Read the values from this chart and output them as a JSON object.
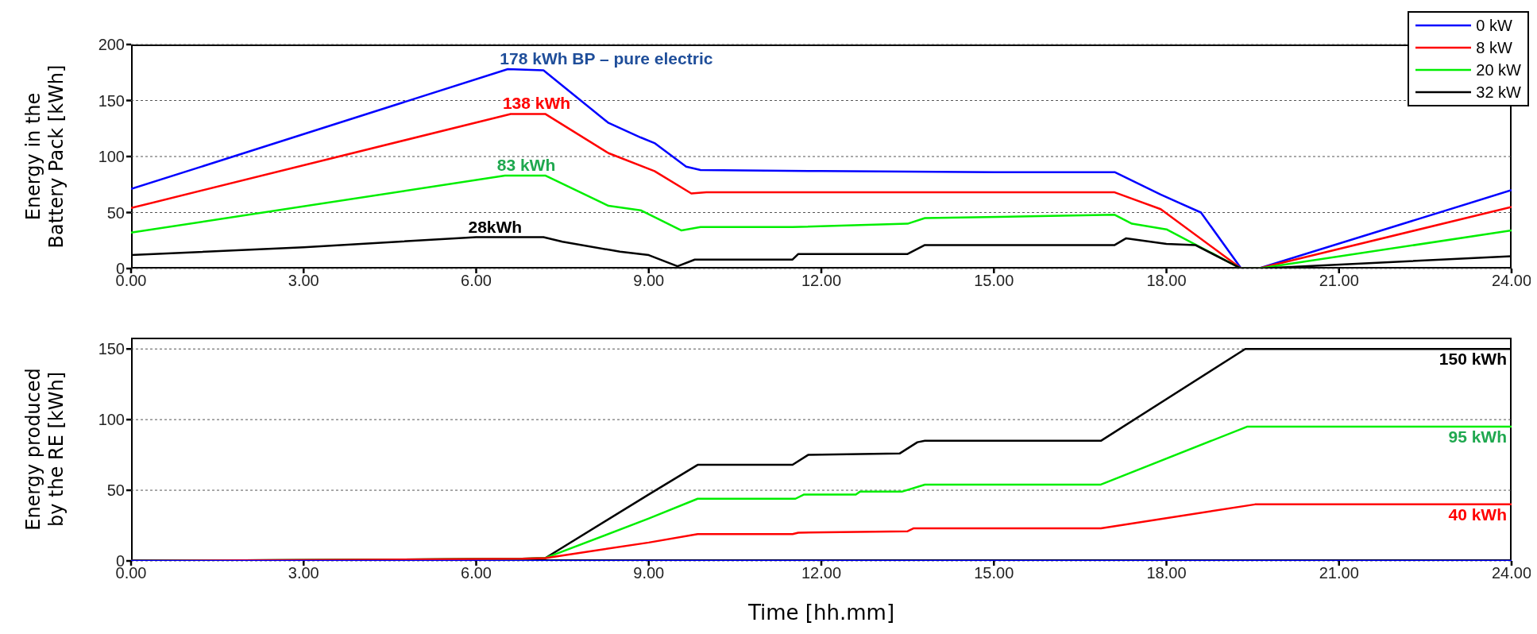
{
  "chart_data": [
    {
      "type": "line",
      "ylabel": "Energy in the Battery Pack [kWh]",
      "xlim": [
        0,
        24
      ],
      "xticks": [
        {
          "value": 0,
          "label": "0.00"
        },
        {
          "value": 3,
          "label": "3.00"
        },
        {
          "value": 6,
          "label": "6.00"
        },
        {
          "value": 9,
          "label": "9.00"
        },
        {
          "value": 12,
          "label": "12.00"
        },
        {
          "value": 15,
          "label": "15.00"
        },
        {
          "value": 18,
          "label": "18.00"
        },
        {
          "value": 21,
          "label": "21.00"
        },
        {
          "value": 24,
          "label": "24.00"
        }
      ],
      "ylim": [
        0,
        200
      ],
      "yticks": [
        0,
        50,
        100,
        150,
        200
      ],
      "grid": "y",
      "legend": "top right",
      "line_style": "solid",
      "series": [
        {
          "name": "0 kW",
          "color": "#0000ff",
          "x": [
            0,
            6.55,
            7.17,
            8.3,
            8.86,
            9.1,
            9.65,
            9.9,
            12,
            15,
            17.1,
            17.9,
            18.6,
            19.3,
            19.6,
            24
          ],
          "values": [
            71,
            178,
            177,
            130,
            117,
            112,
            91,
            88,
            87,
            86,
            86,
            66,
            50,
            0,
            0,
            70
          ]
        },
        {
          "name": "8 kW",
          "color": "#ff0000",
          "x": [
            0,
            6.6,
            7.2,
            8.3,
            9.1,
            9.74,
            10,
            12,
            15,
            17.1,
            17.9,
            19.3,
            19.6,
            24
          ],
          "values": [
            54,
            138,
            138,
            103,
            87,
            67,
            68,
            68,
            68,
            68,
            53,
            0,
            0,
            55
          ]
        },
        {
          "name": "20 kW",
          "color": "#00ee00",
          "x": [
            0,
            6.5,
            7.2,
            8.3,
            8.86,
            9.57,
            9.9,
            11.5,
            13.5,
            13.8,
            17.1,
            17.4,
            18,
            19.3,
            19.6,
            24
          ],
          "values": [
            32,
            83,
            83,
            56,
            52,
            34,
            37,
            37,
            40,
            45,
            48,
            40,
            35,
            0,
            0,
            34
          ]
        },
        {
          "name": "32 kW",
          "color": "#000000",
          "x": [
            0,
            3,
            6,
            7.17,
            7.5,
            8.5,
            9,
            9.5,
            9.8,
            11.5,
            11.6,
            13.5,
            13.8,
            17.1,
            17.3,
            18,
            18.5,
            19.3,
            19.6,
            24
          ],
          "values": [
            12,
            19,
            28,
            28,
            24,
            15,
            12,
            2,
            8,
            8,
            13,
            13,
            21,
            21,
            27,
            22,
            21,
            0,
            0,
            11
          ]
        }
      ],
      "annotations": [
        {
          "text": "178 kWh BP – pure electric",
          "x": 6.55,
          "y": 178
        },
        {
          "text": "138 kWh",
          "x": 6.6,
          "y": 138
        },
        {
          "text": "83 kWh",
          "x": 6.5,
          "y": 83
        },
        {
          "text": "28kWh",
          "x": 6,
          "y": 28
        }
      ]
    },
    {
      "type": "line",
      "xlabel": "Time [hh.mm]",
      "ylabel": "Energy produced by the RE [kWh]",
      "xlim": [
        0,
        24
      ],
      "xticks": [
        {
          "value": 0,
          "label": "0.00"
        },
        {
          "value": 3,
          "label": "3.00"
        },
        {
          "value": 6,
          "label": "6.00"
        },
        {
          "value": 9,
          "label": "9.00"
        },
        {
          "value": 12,
          "label": "12.00"
        },
        {
          "value": 15,
          "label": "15.00"
        },
        {
          "value": 18,
          "label": "18.00"
        },
        {
          "value": 21,
          "label": "21.00"
        },
        {
          "value": 24,
          "label": "24.00"
        }
      ],
      "ylim": [
        0,
        158
      ],
      "yticks": [
        0,
        50,
        100,
        150
      ],
      "grid": "y",
      "line_style": "solid",
      "series": [
        {
          "color": "#000000",
          "x": [
            0,
            6.8,
            7.2,
            9,
            9.85,
            11.5,
            11.77,
            13.36,
            13.67,
            13.8,
            16.86,
            19.37,
            24
          ],
          "values": [
            0,
            1.5,
            2,
            47,
            68,
            68,
            75,
            76,
            84,
            85,
            85,
            150,
            150
          ]
        },
        {
          "color": "#00ee00",
          "x": [
            0,
            6.8,
            7.2,
            9,
            9.85,
            11.55,
            11.7,
            12.6,
            12.67,
            13.4,
            13.8,
            16.86,
            19.4,
            24
          ],
          "values": [
            0,
            1.5,
            2,
            30,
            44,
            44,
            47,
            47,
            49,
            49,
            54,
            54,
            95,
            95
          ]
        },
        {
          "color": "#ff0000",
          "x": [
            0,
            6.8,
            7.2,
            9,
            9.85,
            11.5,
            11.6,
            13.5,
            13.6,
            16.86,
            19.54,
            24
          ],
          "values": [
            0,
            1.5,
            2,
            13,
            19,
            19,
            20,
            21,
            23,
            23,
            40,
            40
          ]
        },
        {
          "color": "#0000ff",
          "x": [
            0,
            24
          ],
          "values": [
            0,
            0
          ]
        }
      ],
      "annotations": [
        {
          "text": "150 kWh",
          "x": 24,
          "y": 150
        },
        {
          "text": "95 kWh",
          "x": 24,
          "y": 95
        },
        {
          "text": "40 kWh",
          "x": 24,
          "y": 40
        }
      ]
    }
  ]
}
